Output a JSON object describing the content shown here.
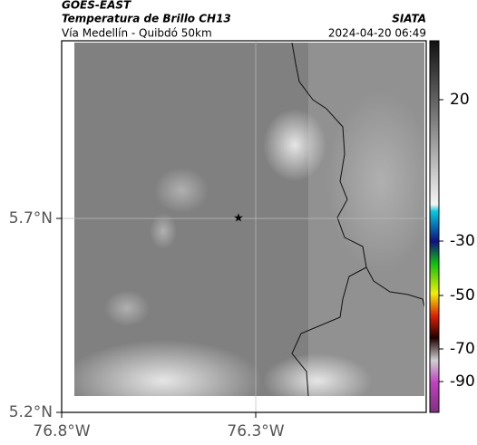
{
  "header": {
    "title": "GOES-EAST",
    "subtitle": "Temperatura de Brillo CH13",
    "route": "Vía Medellín - Quibdó 50km",
    "source": "SIATA",
    "timestamp": "2024-04-20 06:49"
  },
  "map": {
    "lat_ticks": [
      "5.7°N",
      "5.2°N"
    ],
    "lon_ticks": [
      "76.8°W",
      "76.3°W"
    ]
  },
  "colorbar": {
    "ticks": [
      "20",
      "-30",
      "-50",
      "-70",
      "-90"
    ]
  }
}
